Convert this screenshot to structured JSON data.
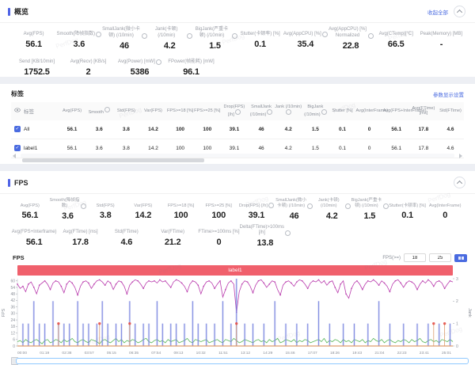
{
  "watermark": "PerfDog",
  "colors": {
    "accent_blue": "#4a6be0",
    "section_bar": "#4f63e6",
    "banner_red": "#f0606c",
    "fps_line": "#b93bad",
    "jank_spike": "#7b86e0",
    "interframe_line": "#57b657",
    "bigjank_marker": "#e4483f",
    "baseline_orange": "#dd9d6d"
  },
  "overview": {
    "title": "概览",
    "collapse_all": "收起全部",
    "metrics_row1": [
      {
        "label": "Avg(FPS)",
        "value": "56.1",
        "info": false
      },
      {
        "label": "Smooth(降帧指数)",
        "value": "3.6",
        "info": true
      },
      {
        "label": "SmallJank(微小卡顿) (/10min)",
        "value": "46",
        "info": true
      },
      {
        "label": "Jank(卡顿) (/10min)",
        "value": "4.2",
        "info": true
      },
      {
        "label": "BigJank(严重卡顿) (/10min)",
        "value": "1.5",
        "info": true
      },
      {
        "label": "Stutter(卡顿率) [%]",
        "value": "0.1",
        "info": false
      },
      {
        "label": "Avg(AppCPU) [%]",
        "value": "35.4",
        "info": true
      },
      {
        "label": "Avg(AppCPU) [%] Normalized",
        "value": "22.8",
        "info": true
      },
      {
        "label": "Avg(CTemp)[°C]",
        "value": "66.5",
        "info": false
      },
      {
        "label": "Peak(Memory) [MB]",
        "value": "-",
        "info": false
      }
    ],
    "metrics_row2": [
      {
        "label": "Send [KB/10min]",
        "value": "1752.5",
        "info": false
      },
      {
        "label": "Avg(Recv) [KB/s]",
        "value": "2",
        "info": false
      },
      {
        "label": "Avg(Power) [mW]",
        "value": "5386",
        "info": true
      },
      {
        "label": "FPower(帧能耗) [mW]",
        "value": "96.1",
        "info": false
      }
    ]
  },
  "labels_section": {
    "title": "标签",
    "settings_link": "参数显示设置",
    "table": {
      "name_header": "标签",
      "headers": [
        {
          "label": "Avg(FPS)",
          "info": false
        },
        {
          "label": "Smooth",
          "info": true
        },
        {
          "label": "Std(FPS)",
          "info": false
        },
        {
          "label": "Var(FPS)",
          "info": false
        },
        {
          "label": "FPS>=18 [%]",
          "info": false
        },
        {
          "label": "FPS>=25 [%]",
          "info": false
        },
        {
          "label": "Drop(FPS) [/h]",
          "info": true
        },
        {
          "label": "SmallJank (/10min)",
          "info": true
        },
        {
          "label": "Jank (/10min)",
          "info": true
        },
        {
          "label": "BigJank (/10min)",
          "info": true
        },
        {
          "label": "Stutter [%]",
          "info": false
        },
        {
          "label": "Avg(InterFrame)",
          "info": false
        },
        {
          "label": "Avg(FPS+InterFrame)",
          "info": false
        },
        {
          "label": "Avg(FTime) [ms]",
          "info": false
        },
        {
          "label": "Std(FTime)",
          "info": false
        }
      ],
      "rows": [
        {
          "name": "All",
          "checked": true,
          "values": [
            "56.1",
            "3.6",
            "3.8",
            "14.2",
            "100",
            "100",
            "39.1",
            "46",
            "4.2",
            "1.5",
            "0.1",
            "0",
            "56.1",
            "17.8",
            "4.6"
          ]
        },
        {
          "name": "label1",
          "checked": true,
          "values": [
            "56.1",
            "3.6",
            "3.8",
            "14.2",
            "100",
            "100",
            "39.1",
            "46",
            "4.2",
            "1.5",
            "0.1",
            "0",
            "56.1",
            "17.8",
            "4.6"
          ]
        }
      ]
    }
  },
  "fps_section": {
    "title": "FPS",
    "metrics_row1": [
      {
        "label": "Avg(FPS)",
        "value": "56.1",
        "info": false
      },
      {
        "label": "Smooth(降帧指数)",
        "value": "3.6",
        "info": true
      },
      {
        "label": "Std(FPS)",
        "value": "3.8",
        "info": false
      },
      {
        "label": "Var(FPS)",
        "value": "14.2",
        "info": false
      },
      {
        "label": "FPS>=18 [%]",
        "value": "100",
        "info": false
      },
      {
        "label": "FPS>=25 [%]",
        "value": "100",
        "info": false
      },
      {
        "label": "Drop(FPS) [/h]",
        "value": "39.1",
        "info": true
      },
      {
        "label": "SmallJank(微小卡顿) (/10min)",
        "value": "46",
        "info": true
      },
      {
        "label": "Jank(卡顿) (/10min)",
        "value": "4.2",
        "info": true
      },
      {
        "label": "BigJank(严重卡顿) (/10min)",
        "value": "1.5",
        "info": true
      },
      {
        "label": "Stutter(卡顿率) [%]",
        "value": "0.1",
        "info": false
      },
      {
        "label": "Avg(InterFrame)",
        "value": "0",
        "info": false
      }
    ],
    "metrics_row2": [
      {
        "label": "Avg(FPS+Interframe)",
        "value": "56.1",
        "info": false
      },
      {
        "label": "Avg(FTime) [ms]",
        "value": "17.8",
        "info": false
      },
      {
        "label": "Std(FTime)",
        "value": "4.6",
        "info": false
      },
      {
        "label": "Var(FTime)",
        "value": "21.2",
        "info": false
      },
      {
        "label": "FTime>=100ms [%]",
        "value": "0",
        "info": false
      },
      {
        "label": "Delta(FTime)>100ms [/h]",
        "value": "13.8",
        "info": true
      }
    ],
    "chart_header": {
      "title": "FPS",
      "threshold_label": "FPS(>=)",
      "threshold_low": "18",
      "threshold_high": "25"
    }
  },
  "chart_data": {
    "type": "line",
    "title": "FPS",
    "banner_label": "label1",
    "ylabel": "FPS",
    "y2label": "Jank",
    "ylim": [
      0,
      62
    ],
    "y2lim": [
      0,
      3
    ],
    "yticks": [
      0,
      6,
      12,
      18,
      24,
      30,
      36,
      42,
      48,
      54,
      60
    ],
    "y2ticks": [
      0,
      1,
      2,
      3
    ],
    "xticklabels": [
      "00:00",
      "01:19",
      "02:38",
      "03:57",
      "05:15",
      "06:35",
      "07:54",
      "09:13",
      "10:32",
      "11:51",
      "13:12",
      "14:29",
      "15:46",
      "17:07",
      "18:26",
      "19:43",
      "21:04",
      "22:23",
      "23:41",
      "25:01"
    ],
    "series": [
      {
        "name": "FPS",
        "axis": "left",
        "kind": "line",
        "values": [
          57,
          53,
          55,
          50,
          57,
          59,
          54,
          48,
          56,
          58,
          60,
          57,
          52,
          58,
          60,
          59,
          55,
          49,
          57,
          60,
          58,
          54,
          47,
          55,
          59,
          60,
          58,
          53,
          57,
          60,
          61,
          59,
          56,
          60,
          58,
          52,
          57,
          60,
          59,
          55,
          48,
          56,
          59,
          61,
          60,
          57,
          53,
          58,
          60,
          59,
          60,
          58,
          61,
          59,
          60,
          57,
          54,
          59,
          61,
          60,
          58,
          55,
          50,
          57,
          60,
          59,
          56,
          48,
          55,
          59,
          60,
          58,
          53,
          57,
          60,
          45,
          52,
          58,
          60,
          57,
          31,
          50,
          57,
          60,
          59,
          55,
          49,
          56,
          60,
          61,
          58,
          54,
          57,
          60,
          59,
          52,
          47,
          56,
          59,
          60,
          58,
          55,
          59,
          61,
          60,
          57,
          53,
          58,
          60,
          59,
          61,
          58,
          60,
          56,
          59,
          60,
          54,
          49,
          57,
          60,
          48,
          44,
          53,
          58,
          60,
          57,
          52,
          57,
          60,
          59,
          61,
          59,
          56,
          60,
          58,
          55,
          50,
          57,
          60,
          61,
          58,
          54,
          58,
          60,
          59,
          57,
          52,
          57,
          60,
          58,
          61,
          59,
          55,
          59,
          60,
          58,
          53,
          57,
          60,
          59
        ]
      },
      {
        "name": "InterFrame",
        "axis": "left",
        "kind": "line",
        "values": [
          4,
          5,
          3,
          6,
          4,
          3,
          5,
          6,
          4,
          2,
          5,
          6,
          3,
          4,
          6,
          5,
          3,
          6,
          4,
          5,
          7,
          4,
          3,
          5,
          6,
          4,
          3,
          6,
          5,
          4,
          2,
          5,
          6,
          4,
          3,
          5,
          7,
          4,
          6,
          3,
          5,
          4,
          6,
          5,
          3,
          4,
          6,
          7,
          4,
          3,
          5,
          6,
          4,
          5,
          3,
          6,
          4,
          5,
          6,
          3,
          4,
          5,
          7,
          4,
          3,
          6,
          5,
          4,
          5,
          6,
          3,
          4,
          5,
          6,
          4,
          3,
          6,
          5,
          4,
          7,
          5,
          3,
          4,
          6,
          5,
          4,
          3,
          5,
          6,
          4,
          5,
          3,
          6,
          4,
          5,
          7,
          3,
          4,
          6,
          5,
          4,
          6,
          3,
          5,
          4,
          6,
          5,
          3,
          4,
          5,
          6,
          4,
          7,
          3,
          5,
          4,
          6,
          5,
          3,
          6,
          4,
          5,
          3,
          6,
          5,
          4,
          6,
          3,
          5,
          4,
          7,
          5,
          4,
          6,
          3,
          5,
          6,
          4,
          3,
          5,
          4,
          6,
          5,
          3,
          6,
          4,
          5,
          7,
          4,
          3,
          5,
          6,
          4,
          5,
          3,
          6,
          5,
          4,
          6,
          4
        ]
      },
      {
        "name": "Jank",
        "axis": "right",
        "kind": "spike",
        "points": [
          [
            2,
            1
          ],
          [
            4,
            1
          ],
          [
            6,
            2
          ],
          [
            8,
            1
          ],
          [
            10,
            1
          ],
          [
            13,
            2
          ],
          [
            15,
            1
          ],
          [
            17,
            1
          ],
          [
            19,
            1
          ],
          [
            22,
            2
          ],
          [
            24,
            1
          ],
          [
            26,
            1
          ],
          [
            29,
            1
          ],
          [
            31,
            2
          ],
          [
            33,
            1
          ],
          [
            36,
            1
          ],
          [
            38,
            1
          ],
          [
            41,
            2
          ],
          [
            43,
            1
          ],
          [
            46,
            1
          ],
          [
            48,
            1
          ],
          [
            51,
            2
          ],
          [
            53,
            1
          ],
          [
            56,
            1
          ],
          [
            58,
            1
          ],
          [
            61,
            1
          ],
          [
            64,
            2
          ],
          [
            66,
            1
          ],
          [
            69,
            1
          ],
          [
            72,
            1
          ],
          [
            75,
            2
          ],
          [
            78,
            1
          ],
          [
            80,
            3
          ],
          [
            83,
            1
          ],
          [
            86,
            1
          ],
          [
            90,
            1
          ],
          [
            94,
            2
          ],
          [
            98,
            1
          ],
          [
            102,
            1
          ],
          [
            106,
            1
          ],
          [
            110,
            2
          ],
          [
            114,
            1
          ],
          [
            119,
            1
          ],
          [
            123,
            1
          ],
          [
            128,
            1
          ],
          [
            132,
            2
          ],
          [
            136,
            1
          ],
          [
            141,
            1
          ],
          [
            146,
            1
          ],
          [
            150,
            1
          ],
          [
            154,
            1
          ],
          [
            158,
            1
          ]
        ]
      },
      {
        "name": "BigJank",
        "axis": "right",
        "kind": "marker",
        "points": [
          [
            15,
            1
          ],
          [
            30,
            1
          ],
          [
            41,
            1
          ],
          [
            80,
            1
          ],
          [
            152,
            1
          ],
          [
            156,
            1
          ]
        ]
      }
    ]
  }
}
